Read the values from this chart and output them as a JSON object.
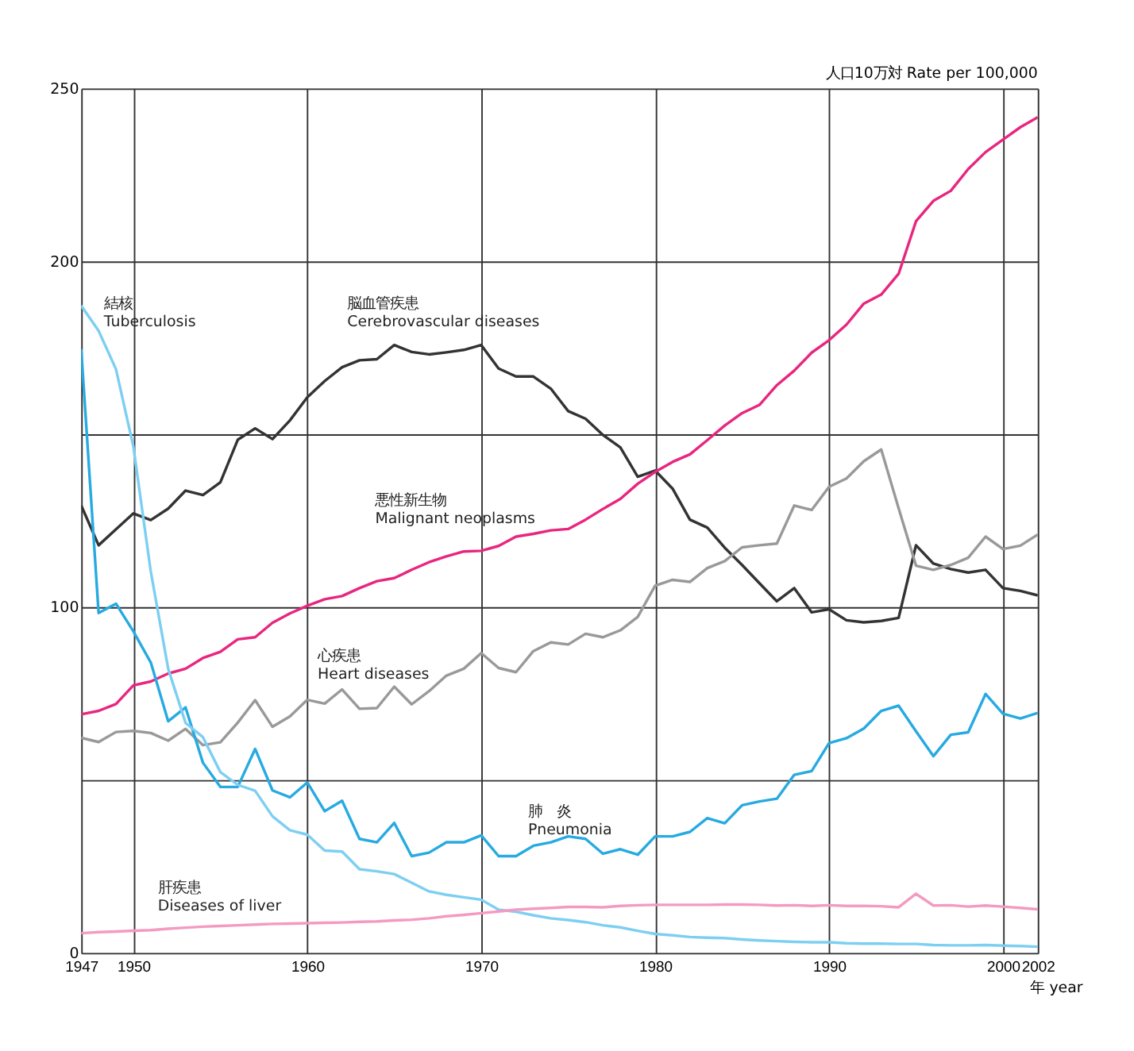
{
  "chart_data": {
    "type": "line",
    "xlabel": "年 year",
    "ylabel": "人口10万対  Rate per 100,000",
    "x": [
      1947,
      1948,
      1949,
      1950,
      1951,
      1952,
      1953,
      1954,
      1955,
      1956,
      1957,
      1958,
      1959,
      1960,
      1961,
      1962,
      1963,
      1964,
      1965,
      1966,
      1967,
      1968,
      1969,
      1970,
      1971,
      1972,
      1973,
      1974,
      1975,
      1976,
      1977,
      1978,
      1979,
      1980,
      1981,
      1982,
      1983,
      1984,
      1985,
      1986,
      1987,
      1988,
      1989,
      1990,
      1991,
      1992,
      1993,
      1994,
      1995,
      1996,
      1997,
      1998,
      1999,
      2000,
      2001,
      2002
    ],
    "series": [
      {
        "name": "脳血管疾患\nCerebrovascular diseases",
        "color": "#333333",
        "values": [
          129.4,
          117.9,
          122.5,
          127.1,
          125.2,
          128.5,
          133.7,
          132.4,
          136.1,
          148.4,
          151.7,
          148.6,
          154.0,
          160.7,
          165.4,
          169.4,
          171.4,
          171.7,
          175.8,
          173.8,
          173.1,
          173.7,
          174.4,
          175.8,
          169.0,
          166.7,
          166.7,
          163.2,
          156.7,
          154.5,
          149.8,
          146.2,
          137.7,
          139.5,
          134.3,
          125.3,
          123.0,
          117.2,
          112.2,
          106.9,
          101.7,
          105.5,
          98.5,
          99.4,
          96.2,
          95.6,
          96.0,
          96.9,
          117.9,
          112.6,
          111.0,
          110.0,
          110.8,
          105.5,
          104.7,
          103.4
        ]
      },
      {
        "name": "悪性新生物\nMalignant neoplasms",
        "color": "#e8267f",
        "values": [
          69.0,
          70.0,
          72.0,
          77.4,
          78.5,
          80.8,
          82.2,
          85.3,
          87.1,
          90.7,
          91.3,
          95.5,
          98.2,
          100.4,
          102.3,
          103.2,
          105.5,
          107.5,
          108.4,
          110.8,
          113.0,
          114.7,
          116.1,
          116.3,
          117.7,
          120.4,
          121.2,
          122.2,
          122.6,
          125.3,
          128.4,
          131.3,
          135.7,
          139.1,
          142.0,
          144.2,
          148.3,
          152.5,
          156.1,
          158.5,
          164.2,
          168.4,
          173.6,
          177.2,
          181.7,
          187.8,
          190.4,
          196.4,
          211.6,
          217.5,
          220.4,
          226.7,
          231.6,
          235.2,
          238.8,
          241.7
        ]
      },
      {
        "name": "心疾患\nHeart diseases",
        "color": "#999999",
        "values": [
          62.2,
          61.0,
          63.9,
          64.2,
          63.6,
          61.4,
          64.8,
          60.1,
          60.9,
          66.6,
          73.1,
          65.4,
          68.4,
          73.2,
          72.1,
          76.2,
          70.6,
          70.8,
          77.0,
          71.9,
          75.7,
          80.2,
          82.2,
          86.7,
          82.4,
          81.2,
          87.3,
          89.8,
          89.2,
          92.3,
          91.3,
          93.3,
          97.2,
          106.2,
          107.9,
          107.3,
          111.3,
          113.3,
          117.3,
          117.9,
          118.4,
          129.4,
          128.1,
          134.8,
          137.2,
          142.2,
          145.6,
          128.6,
          112.0,
          110.8,
          112.2,
          114.3,
          120.4,
          116.8,
          117.8,
          121.0
        ]
      },
      {
        "name": "肺　炎\nPneumonia",
        "color": "#27aae1",
        "values": [
          174.6,
          98.3,
          101.0,
          93.0,
          84.0,
          67.0,
          71.0,
          55.0,
          48.0,
          48.0,
          59.0,
          47.0,
          45.0,
          49.3,
          41.0,
          44.0,
          33.0,
          32.0,
          37.6,
          28.0,
          29.0,
          32.0,
          32.0,
          34.0,
          28.0,
          28.0,
          31.0,
          32.0,
          33.7,
          33.0,
          28.7,
          30.0,
          28.4,
          33.7,
          33.7,
          35.0,
          39.0,
          37.5,
          42.7,
          43.8,
          44.6,
          51.5,
          52.6,
          60.7,
          62.1,
          64.9,
          70.0,
          71.5,
          64.1,
          56.9,
          63.1,
          63.8,
          74.9,
          69.2,
          67.8,
          69.4
        ]
      },
      {
        "name": "結核\nTuberculosis",
        "color": "#7dcff2",
        "values": [
          187.2,
          179.9,
          168.8,
          146.4,
          110.3,
          82.2,
          66.5,
          62.4,
          52.3,
          48.6,
          46.9,
          39.5,
          35.5,
          34.2,
          29.6,
          29.3,
          24.2,
          23.6,
          22.8,
          20.3,
          17.8,
          16.8,
          16.1,
          15.4,
          12.5,
          11.9,
          10.9,
          10.0,
          9.5,
          8.9,
          8.0,
          7.4,
          6.4,
          5.5,
          5.1,
          4.6,
          4.4,
          4.3,
          3.9,
          3.6,
          3.4,
          3.2,
          3.1,
          3.1,
          2.8,
          2.7,
          2.7,
          2.6,
          2.6,
          2.3,
          2.2,
          2.2,
          2.3,
          2.1,
          2.0,
          1.8
        ]
      },
      {
        "name": "肝疾患\nDiseases of liver",
        "color": "#f49ac1",
        "values": [
          5.7,
          6.0,
          6.2,
          6.4,
          6.6,
          7.0,
          7.3,
          7.6,
          7.8,
          8.0,
          8.2,
          8.4,
          8.5,
          8.6,
          8.7,
          8.8,
          9.0,
          9.1,
          9.4,
          9.6,
          10.0,
          10.6,
          11.0,
          11.5,
          12.0,
          12.5,
          12.8,
          13.0,
          13.3,
          13.3,
          13.2,
          13.6,
          13.8,
          13.9,
          13.9,
          13.9,
          13.9,
          14.0,
          14.0,
          13.9,
          13.7,
          13.8,
          13.6,
          13.8,
          13.6,
          13.6,
          13.5,
          13.2,
          17.1,
          13.7,
          13.8,
          13.4,
          13.7,
          13.4,
          13.0,
          12.6
        ]
      }
    ],
    "xlim": [
      1947,
      2002
    ],
    "xticks": [
      1947,
      1950,
      1960,
      1970,
      1980,
      1990,
      2000,
      2002
    ],
    "ylim": [
      0,
      250
    ],
    "yticks": [
      0,
      {
        "value": 50,
        "label": null
      },
      100,
      {
        "value": 150,
        "label": null
      },
      200,
      250
    ],
    "grid": true,
    "legend": false,
    "marker": "none",
    "line_style": "solid"
  }
}
